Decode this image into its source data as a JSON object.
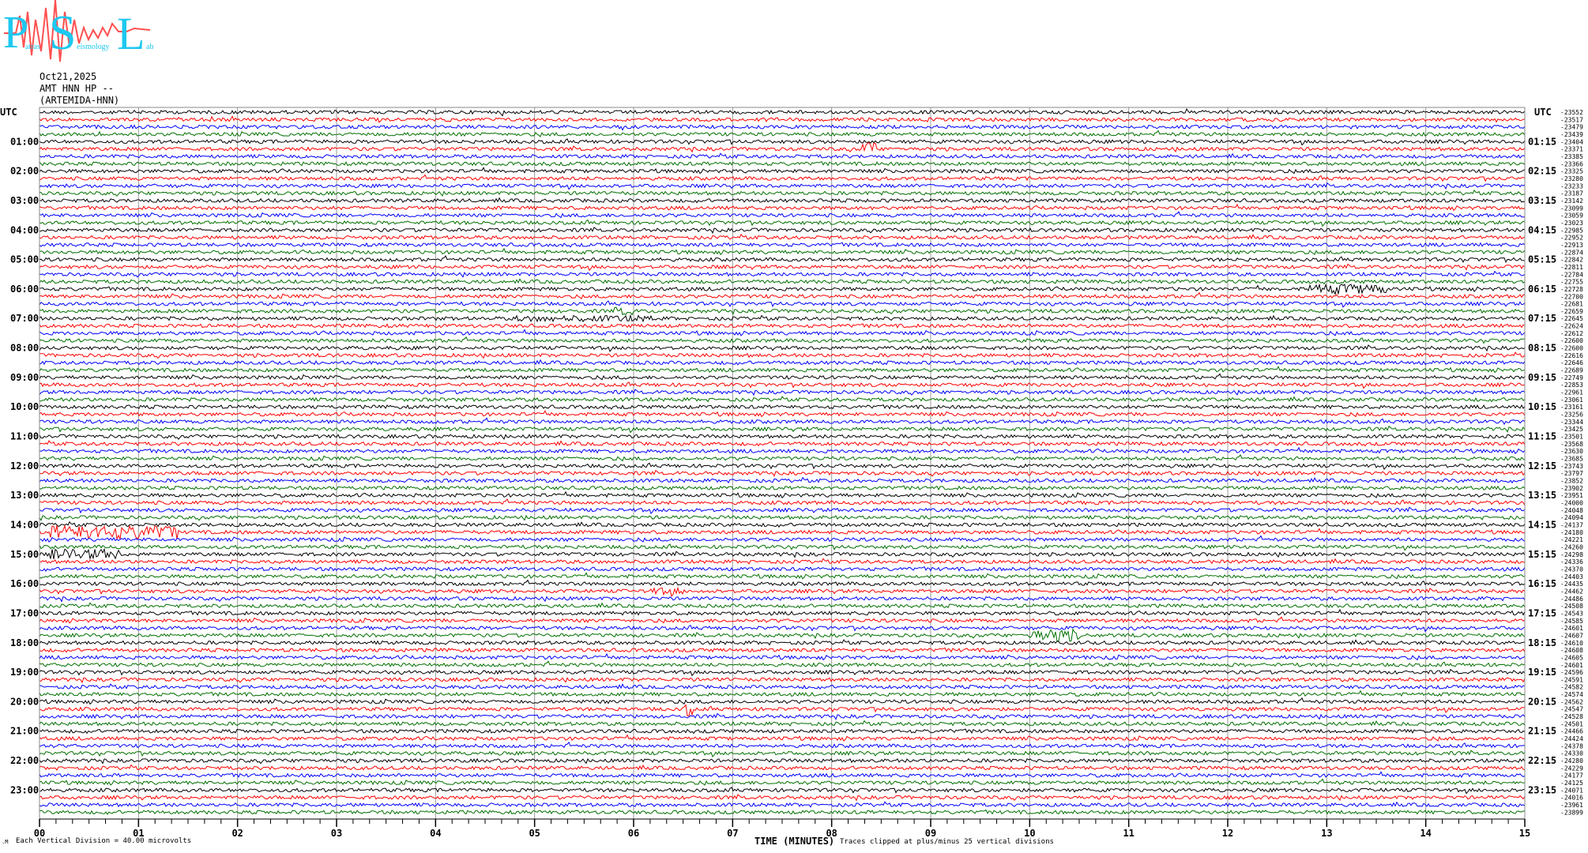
{
  "logo": {
    "text": "Patras Seismology Lab",
    "letters": [
      "P",
      "S",
      "L"
    ],
    "small": [
      "atras",
      "eismology",
      "ab"
    ],
    "letter_color": "#1ec8f0",
    "wave_color": "#ff4040"
  },
  "header": {
    "date": "Oct21,2025",
    "station": "AMT HNN HP --",
    "site": "(ARTEMIDA-HNN)"
  },
  "chart_data": {
    "type": "line",
    "title": "",
    "left_axis_title": "UTC",
    "right_axis_title": "UTC",
    "xlabel": "TIME (MINUTES)",
    "xlim": [
      0,
      15
    ],
    "x_ticks": [
      "00",
      "01",
      "02",
      "03",
      "04",
      "05",
      "06",
      "07",
      "08",
      "09",
      "10",
      "11",
      "12",
      "13",
      "14",
      "15"
    ],
    "grid": "vertical lines at each minute",
    "trace_colors": [
      "#000000",
      "#ff0000",
      "#0000ff",
      "#007000"
    ],
    "row_minutes": 15,
    "left_labels": [
      "01:00",
      "02:00",
      "03:00",
      "04:00",
      "05:00",
      "06:00",
      "07:00",
      "08:00",
      "09:00",
      "10:00",
      "11:00",
      "12:00",
      "13:00",
      "14:00",
      "15:00",
      "16:00",
      "17:00",
      "18:00",
      "19:00",
      "20:00",
      "21:00",
      "22:00",
      "23:00"
    ],
    "right_labels": [
      "01:15",
      "02:15",
      "03:15",
      "04:15",
      "05:15",
      "06:15",
      "07:15",
      "08:15",
      "09:15",
      "10:15",
      "11:15",
      "12:15",
      "13:15",
      "14:15",
      "15:15",
      "16:15",
      "17:15",
      "18:15",
      "19:15",
      "20:15",
      "21:15",
      "22:15",
      "23:15"
    ],
    "row_offsets": [
      -23552,
      -23517,
      -23479,
      -23439,
      -23404,
      -23371,
      -23385,
      -23366,
      -23325,
      -23280,
      -23233,
      -23187,
      -23142,
      -23099,
      -23059,
      -23023,
      -22985,
      -22952,
      -22913,
      -22874,
      -22842,
      -22811,
      -22784,
      -22755,
      -22728,
      -22700,
      -22681,
      -22659,
      -22645,
      -22624,
      -22612,
      -22600,
      -22600,
      -22616,
      -22646,
      -22689,
      -22749,
      -22853,
      -22961,
      -23061,
      -23161,
      -23256,
      -23344,
      -23425,
      -23501,
      -23568,
      -23630,
      -23685,
      -23743,
      -23797,
      -23852,
      -23902,
      -23951,
      -24000,
      -24048,
      -24094,
      -24137,
      -24180,
      -24221,
      -24260,
      -24298,
      -24336,
      -24370,
      -24403,
      -24435,
      -24462,
      -24486,
      -24508,
      -24543,
      -24585,
      -24601,
      -24607,
      -24610,
      -24608,
      -24605,
      -24601,
      -24596,
      -24591,
      -24582,
      -24574,
      -24562,
      -24547,
      -24528,
      -24501,
      -24466,
      -24424,
      -24378,
      -24330,
      -24280,
      -24229,
      -24177,
      -24125,
      -24071,
      -24016,
      -23961,
      -23899
    ],
    "vertical_division": "Each Vertical Division =   40.00 microvolts",
    "clip_note": "Traces clipped at plus/minus 25 vertical divisions"
  }
}
